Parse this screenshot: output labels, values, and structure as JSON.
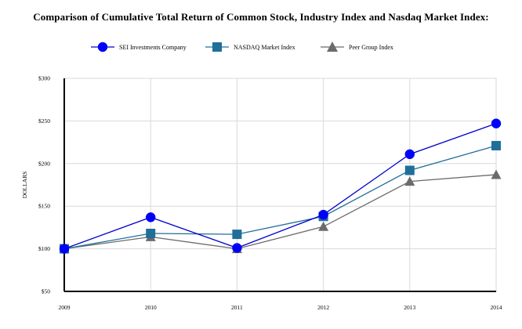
{
  "chart_data": {
    "type": "line",
    "title": "Comparison of Cumulative Total Return of Common Stock, Industry Index and Nasdaq Market Index:",
    "ylabel": "DOLLARS",
    "xlabel": "",
    "x": [
      "2009",
      "2010",
      "2011",
      "2012",
      "2013",
      "2014"
    ],
    "ylim": [
      50,
      300
    ],
    "yticks": [
      50,
      100,
      150,
      200,
      250,
      300
    ],
    "ytick_labels": [
      "$50",
      "$100",
      "$150",
      "$200",
      "$250",
      "$300"
    ],
    "grid": true,
    "legend_position": "top-center",
    "series": [
      {
        "name": "SEI Investments Company",
        "color": "#0000cc",
        "marker": "circle",
        "values": [
          100,
          137,
          101,
          140,
          211,
          247
        ]
      },
      {
        "name": "NASDAQ Market Index",
        "color": "#1f6f9a",
        "marker": "square",
        "values": [
          100,
          118,
          117,
          138,
          192,
          221
        ]
      },
      {
        "name": "Peer Group Index",
        "color": "#6b6b6b",
        "marker": "triangle",
        "values": [
          100,
          114,
          100,
          126,
          179,
          187
        ]
      }
    ]
  }
}
